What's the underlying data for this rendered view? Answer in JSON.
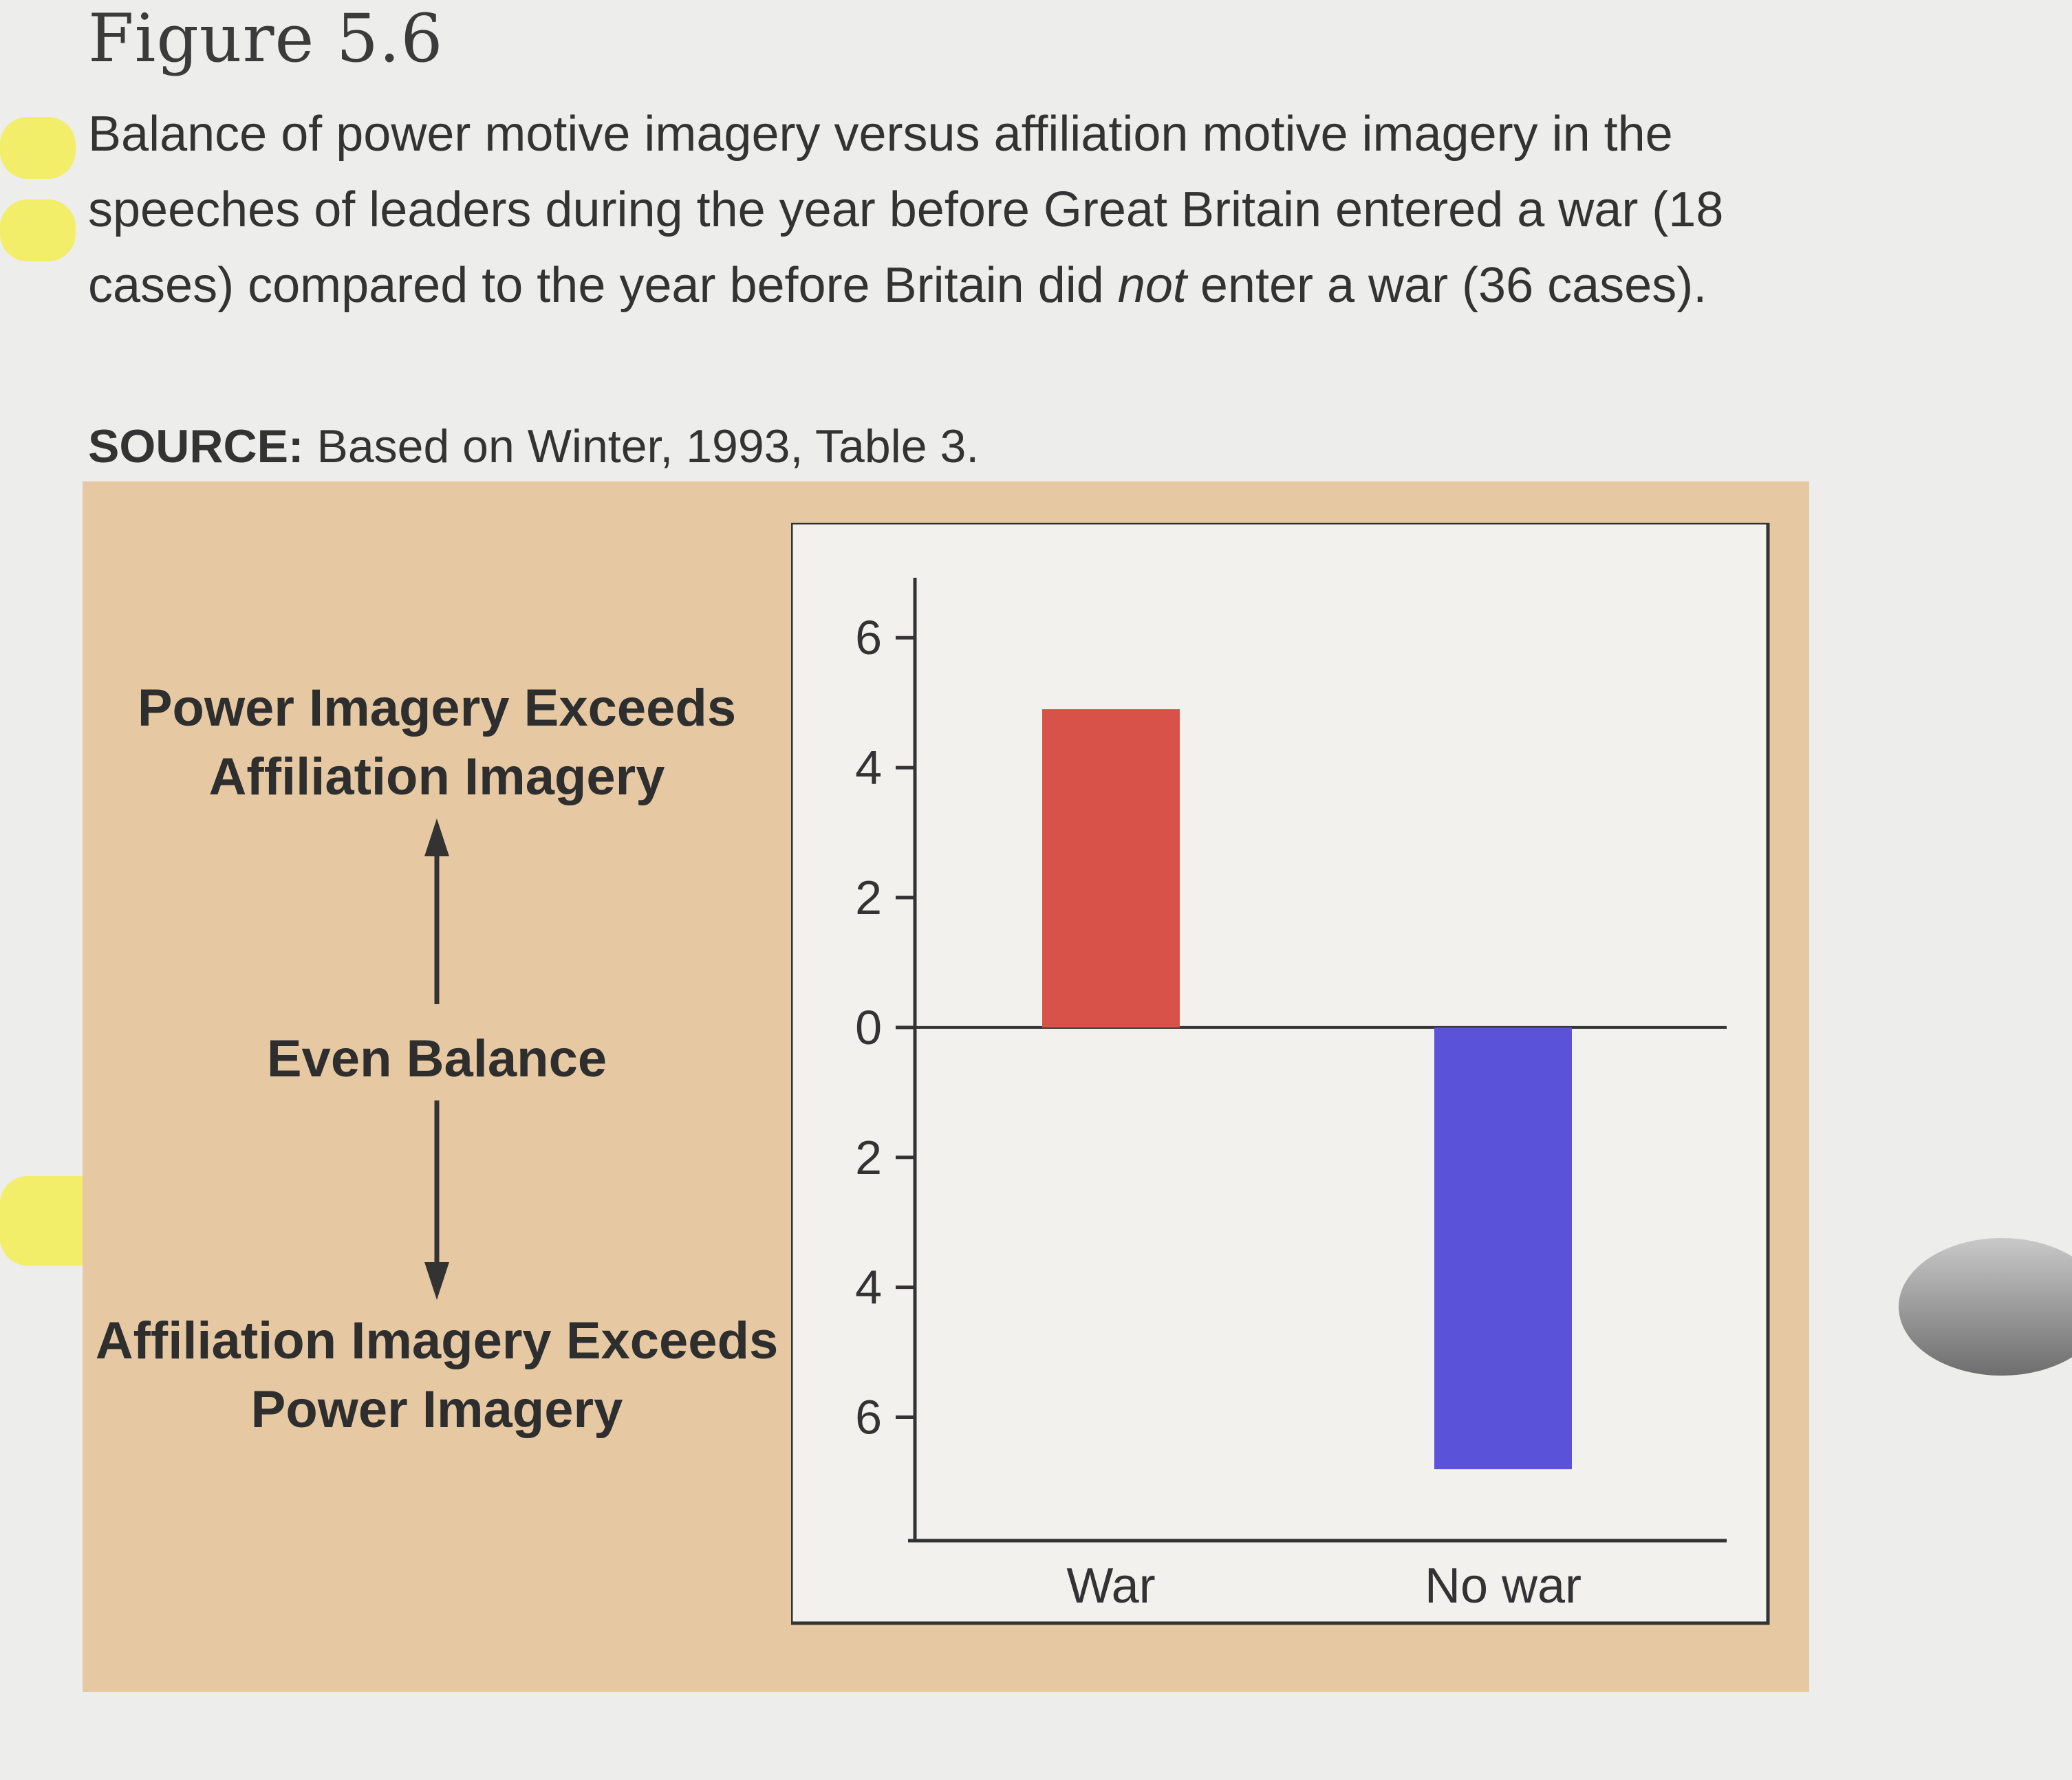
{
  "figure_label": "Figure 5.6",
  "caption": {
    "part1": "Balance of power motive imagery versus affiliation motive imagery in the speeches of leaders during the year before Great Britain entered a war (18 cases) compared to the year before Britain did ",
    "emphasis": "not",
    "part2": " enter a war (36 cases)."
  },
  "source": {
    "label": "SOURCE:",
    "text": " Based on Winter, 1993, Table 3."
  },
  "left_scale": {
    "top_label": "Power Imagery Exceeds Affiliation Imagery",
    "middle_label": "Even Balance",
    "bottom_label": "Affiliation Imagery Exceeds Power Imagery"
  },
  "colors": {
    "panel": "#e6c9a3",
    "war_bar": "#d9524a",
    "no_war_bar": "#5a52d8"
  },
  "chart_data": {
    "type": "bar",
    "categories": [
      "War",
      "No war"
    ],
    "values": [
      4.9,
      -6.8
    ],
    "ylim": [
      -7.9,
      6.5
    ],
    "y_ticks": [
      6,
      4,
      2,
      0,
      -2,
      -4,
      -6
    ],
    "y_tick_labels": [
      "6",
      "4",
      "2",
      "0",
      "2",
      "4",
      "6"
    ],
    "title": "",
    "xlabel": "",
    "ylabel": ""
  }
}
